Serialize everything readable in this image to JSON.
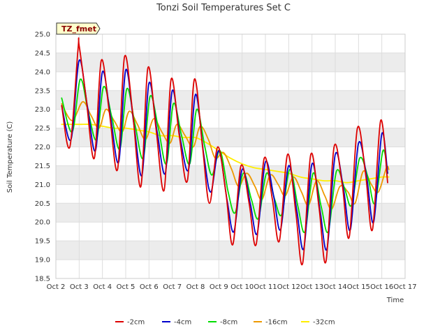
{
  "chart_data": {
    "type": "line",
    "title": "Tonzi Soil Temperatures Set C",
    "xlabel": "Time",
    "ylabel": "Soil Temperature (C)",
    "site_tag": "TZ_fmet",
    "xlim": [
      2,
      17
    ],
    "ylim": [
      18.5,
      25.0
    ],
    "x_ticks": [
      2,
      3,
      4,
      5,
      6,
      7,
      8,
      9,
      10,
      11,
      12,
      13,
      14,
      15,
      16,
      17
    ],
    "x_tick_labels": [
      "Oct 2",
      "Oct 3",
      "Oct 4",
      "Oct 5",
      "Oct 6",
      "Oct 7",
      "Oct 8",
      "Oct 9",
      "Oct 10",
      "Oct 11",
      "Oct 12",
      "Oct 13",
      "Oct 14",
      "Oct 15",
      "Oct 16",
      "Oct 17"
    ],
    "y_ticks": [
      18.5,
      19.0,
      19.5,
      20.0,
      20.5,
      21.0,
      21.5,
      22.0,
      22.5,
      23.0,
      23.5,
      24.0,
      24.5,
      25.0
    ],
    "y_tick_labels": [
      "18.5",
      "19.0",
      "19.5",
      "20.0",
      "20.5",
      "21.0",
      "21.5",
      "22.0",
      "22.5",
      "23.0",
      "23.5",
      "24.0",
      "24.5",
      "25.0"
    ],
    "band_color": "#ececec",
    "legend_position": "bottom",
    "series": [
      {
        "name": "-2cm",
        "color": "#dd0000",
        "x": [
          2.25,
          2.6,
          2.95,
          3.0,
          3.3,
          3.65,
          3.95,
          4.3,
          4.65,
          4.95,
          5.3,
          5.65,
          5.95,
          6.3,
          6.65,
          6.95,
          7.3,
          7.65,
          7.95,
          8.3,
          8.6,
          8.95,
          9.3,
          9.6,
          9.95,
          10.3,
          10.6,
          10.95,
          11.3,
          11.6,
          11.95,
          12.3,
          12.6,
          12.95,
          13.3,
          13.6,
          13.95,
          14.3,
          14.6,
          14.95,
          15.3,
          15.6,
          15.95,
          16.25
        ],
        "y": [
          23.1,
          22.0,
          24.6,
          24.7,
          23.3,
          21.7,
          24.3,
          22.9,
          21.4,
          24.4,
          22.9,
          20.95,
          24.1,
          22.5,
          20.85,
          23.8,
          22.3,
          21.1,
          23.8,
          22.0,
          20.5,
          22.0,
          20.8,
          19.4,
          21.5,
          20.5,
          19.4,
          21.7,
          20.6,
          19.5,
          21.8,
          20.3,
          18.9,
          21.8,
          20.4,
          18.95,
          22.0,
          21.0,
          19.6,
          22.5,
          21.3,
          19.8,
          22.7,
          21.05
        ]
      },
      {
        "name": "-4cm",
        "color": "#0000cc",
        "x": [
          2.25,
          2.65,
          3.0,
          3.35,
          3.7,
          4.0,
          4.35,
          4.7,
          5.0,
          5.35,
          5.7,
          6.0,
          6.35,
          6.7,
          7.0,
          7.35,
          7.7,
          8.0,
          8.35,
          8.65,
          9.0,
          9.35,
          9.65,
          10.0,
          10.35,
          10.65,
          11.0,
          11.35,
          11.65,
          12.0,
          12.35,
          12.65,
          13.0,
          13.35,
          13.65,
          14.0,
          14.35,
          14.65,
          15.0,
          15.35,
          15.65,
          16.0,
          16.25
        ],
        "y": [
          23.1,
          22.2,
          24.3,
          23.1,
          21.9,
          24.0,
          22.8,
          21.6,
          24.05,
          22.6,
          21.25,
          23.7,
          22.4,
          21.3,
          23.5,
          22.2,
          21.4,
          23.4,
          21.8,
          20.8,
          21.9,
          20.6,
          19.75,
          21.4,
          20.5,
          19.7,
          21.6,
          20.7,
          19.8,
          21.5,
          20.3,
          19.3,
          21.55,
          20.3,
          19.3,
          21.8,
          20.9,
          19.8,
          22.1,
          21.2,
          20.0,
          22.35,
          21.3
        ]
      },
      {
        "name": "-8cm",
        "color": "#00dd00",
        "x": [
          2.25,
          2.7,
          3.05,
          3.4,
          3.75,
          4.05,
          4.4,
          4.75,
          5.05,
          5.4,
          5.75,
          6.05,
          6.4,
          6.75,
          7.05,
          7.4,
          7.75,
          8.05,
          8.4,
          8.7,
          9.05,
          9.4,
          9.7,
          10.05,
          10.4,
          10.7,
          11.05,
          11.4,
          11.7,
          12.05,
          12.4,
          12.7,
          13.05,
          13.4,
          13.7,
          14.05,
          14.4,
          14.7,
          15.05,
          15.4,
          15.7,
          16.05,
          16.25
        ],
        "y": [
          23.3,
          22.4,
          23.8,
          22.9,
          22.2,
          23.6,
          22.8,
          21.95,
          23.55,
          22.6,
          21.7,
          23.35,
          22.5,
          21.55,
          23.15,
          22.3,
          21.55,
          23.0,
          22.0,
          21.25,
          21.9,
          20.8,
          20.25,
          21.3,
          20.6,
          20.1,
          21.3,
          20.6,
          20.2,
          21.4,
          20.4,
          19.75,
          21.3,
          20.4,
          19.75,
          21.35,
          20.9,
          20.45,
          21.7,
          21.2,
          20.5,
          21.9,
          21.3
        ]
      },
      {
        "name": "-16cm",
        "color": "#ee9900",
        "x": [
          2.25,
          2.7,
          3.15,
          3.5,
          3.85,
          4.15,
          4.5,
          4.85,
          5.15,
          5.5,
          5.85,
          6.2,
          6.55,
          6.9,
          7.2,
          7.55,
          7.9,
          8.2,
          8.55,
          8.85,
          9.2,
          9.55,
          9.85,
          10.2,
          10.55,
          10.85,
          11.2,
          11.55,
          11.85,
          12.2,
          12.55,
          12.85,
          13.2,
          13.55,
          13.85,
          14.2,
          14.55,
          14.85,
          15.2,
          15.55,
          15.85,
          16.2,
          16.3
        ],
        "y": [
          23.15,
          22.7,
          23.2,
          22.85,
          22.5,
          23.0,
          22.7,
          22.4,
          22.95,
          22.6,
          22.2,
          22.75,
          22.4,
          22.1,
          22.6,
          22.3,
          22.0,
          22.55,
          22.2,
          21.7,
          21.85,
          21.4,
          20.95,
          21.3,
          20.95,
          20.6,
          21.25,
          21.0,
          20.7,
          21.2,
          20.8,
          20.45,
          21.1,
          20.7,
          20.35,
          20.95,
          20.8,
          20.5,
          21.35,
          21.0,
          20.8,
          21.45,
          21.4
        ]
      },
      {
        "name": "-32cm",
        "color": "#ffee00",
        "x": [
          2.25,
          3.0,
          3.5,
          4.0,
          4.5,
          5.0,
          5.5,
          6.0,
          6.5,
          7.0,
          7.5,
          8.0,
          8.5,
          9.0,
          9.5,
          10.0,
          10.5,
          11.0,
          11.5,
          12.0,
          12.5,
          13.0,
          13.5,
          14.0,
          14.5,
          15.0,
          15.5,
          16.0,
          16.3
        ],
        "y": [
          22.6,
          22.6,
          22.6,
          22.55,
          22.5,
          22.5,
          22.45,
          22.4,
          22.3,
          22.3,
          22.25,
          22.25,
          22.1,
          21.9,
          21.7,
          21.55,
          21.45,
          21.4,
          21.35,
          21.3,
          21.2,
          21.15,
          21.1,
          21.1,
          21.05,
          21.1,
          21.15,
          21.2,
          21.2
        ]
      }
    ]
  }
}
